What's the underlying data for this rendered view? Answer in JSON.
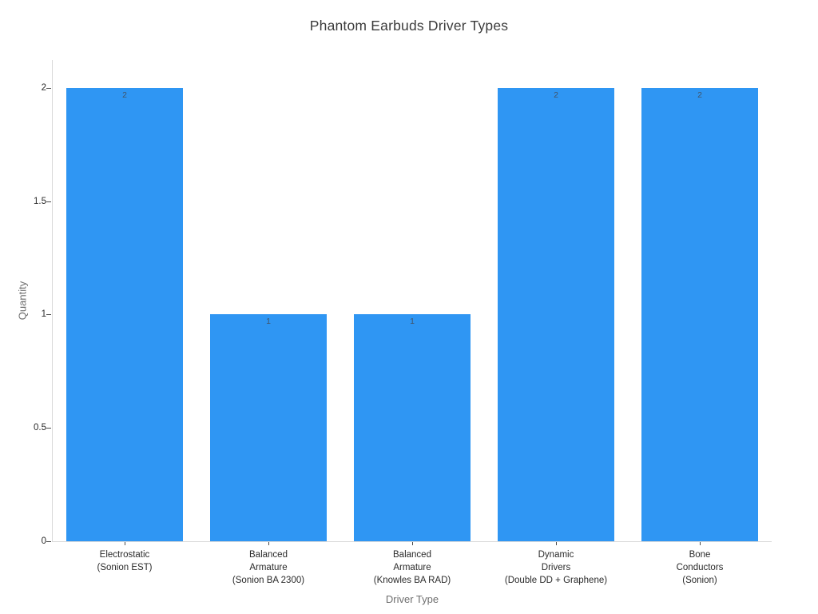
{
  "chart_data": {
    "type": "bar",
    "title": "Phantom Earbuds Driver Types",
    "xlabel": "Driver Type",
    "ylabel": "Quantity",
    "categories": [
      [
        "Electrostatic",
        "(Sonion EST)"
      ],
      [
        "Balanced",
        "Armature",
        "(Sonion BA 2300)"
      ],
      [
        "Balanced",
        "Armature",
        "(Knowles BA RAD)"
      ],
      [
        "Dynamic",
        "Drivers",
        "(Double DD + Graphene)"
      ],
      [
        "Bone",
        "Conductors",
        "(Sonion)"
      ]
    ],
    "values": [
      2,
      1,
      1,
      2,
      2
    ],
    "bar_labels": [
      "2",
      "1",
      "1",
      "2",
      "2"
    ],
    "yticks": [
      "0",
      "0.5",
      "1",
      "1.5",
      "2"
    ],
    "ytick_values": [
      0,
      0.5,
      1,
      1.5,
      2
    ],
    "ylim": [
      0,
      2.123
    ],
    "grid": false,
    "legend": false,
    "colors": {
      "bar": "#2f96f3",
      "bar_label": "#41546a",
      "axis_line": "#d9d9d9",
      "tick_mark": "#4a4a4a",
      "tick_label": "#2a2a2a",
      "axis_title": "#6e6e6e",
      "title": "#3b3b3b",
      "background": "#ffffff"
    }
  }
}
